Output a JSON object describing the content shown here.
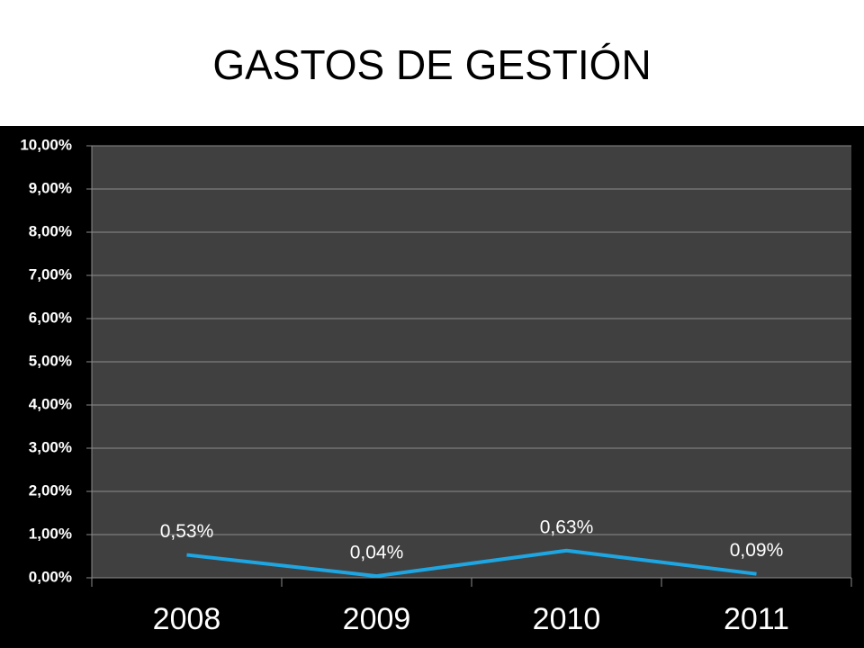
{
  "chart_data": {
    "type": "line",
    "title": "GASTOS DE GESTIÓN",
    "categories": [
      "2008",
      "2009",
      "2010",
      "2011"
    ],
    "series": [
      {
        "color": "#1ea6e3",
        "values": [
          0.53,
          0.04,
          0.63,
          0.09
        ],
        "value_labels": [
          "0,53%",
          "0,04%",
          "0,63%",
          "0,09%"
        ]
      }
    ],
    "ylim": [
      0,
      10
    ],
    "yticks": [
      {
        "value": 0,
        "label": "0,00%"
      },
      {
        "value": 1,
        "label": "1,00%"
      },
      {
        "value": 2,
        "label": "2,00%"
      },
      {
        "value": 3,
        "label": "3,00%"
      },
      {
        "value": 4,
        "label": "4,00%"
      },
      {
        "value": 5,
        "label": "5,00%"
      },
      {
        "value": 6,
        "label": "6,00%"
      },
      {
        "value": 7,
        "label": "7,00%"
      },
      {
        "value": 8,
        "label": "8,00%"
      },
      {
        "value": 9,
        "label": "9,00%"
      },
      {
        "value": 10,
        "label": "10,00%"
      }
    ],
    "grid": true
  }
}
